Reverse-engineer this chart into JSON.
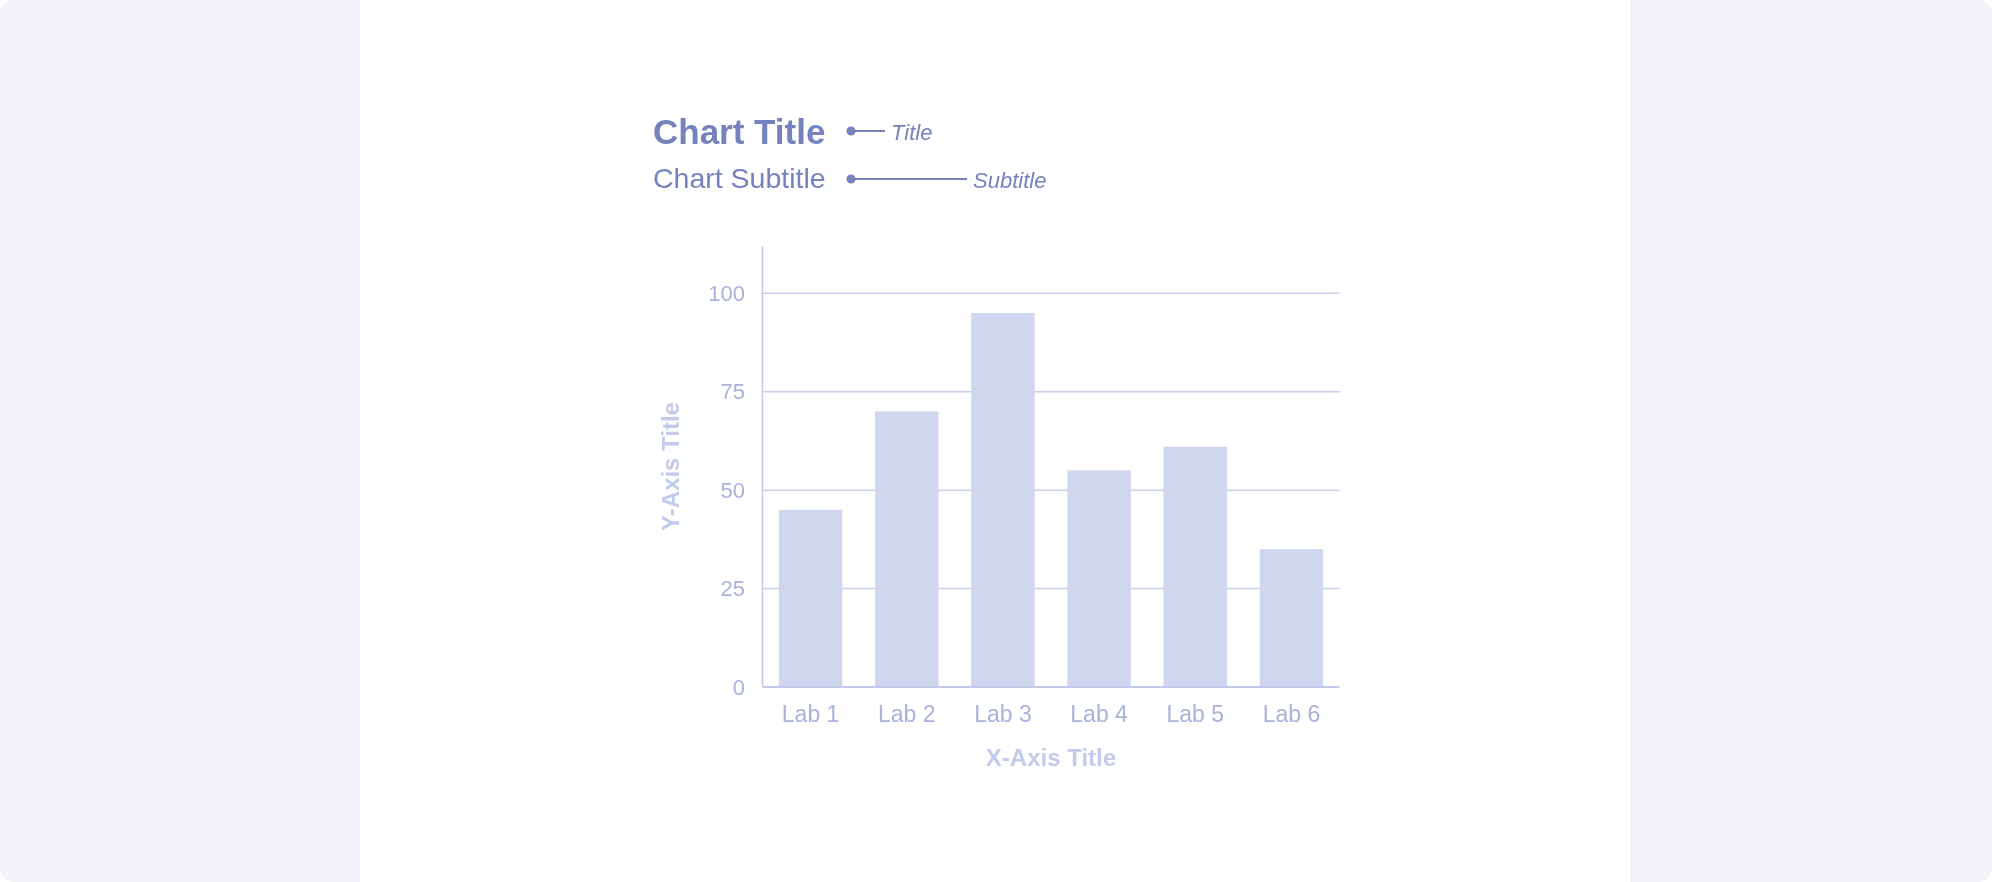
{
  "chart_data": {
    "type": "bar",
    "title": "Chart Title",
    "subtitle": "Chart Subtitle",
    "xlabel": "X-Axis Title",
    "ylabel": "Y-Axis Title",
    "annotations": [
      "Title",
      "Subtitle"
    ],
    "categories": [
      "Lab 1",
      "Lab 2",
      "Lab 3",
      "Lab 4",
      "Lab 5",
      "Lab 6"
    ],
    "values": [
      45,
      70,
      95,
      55,
      61,
      35
    ],
    "color": "#d1d6ef",
    "ylim": [
      0,
      112
    ],
    "yticks": [
      0,
      25,
      50,
      75,
      100
    ],
    "grid": "y"
  }
}
